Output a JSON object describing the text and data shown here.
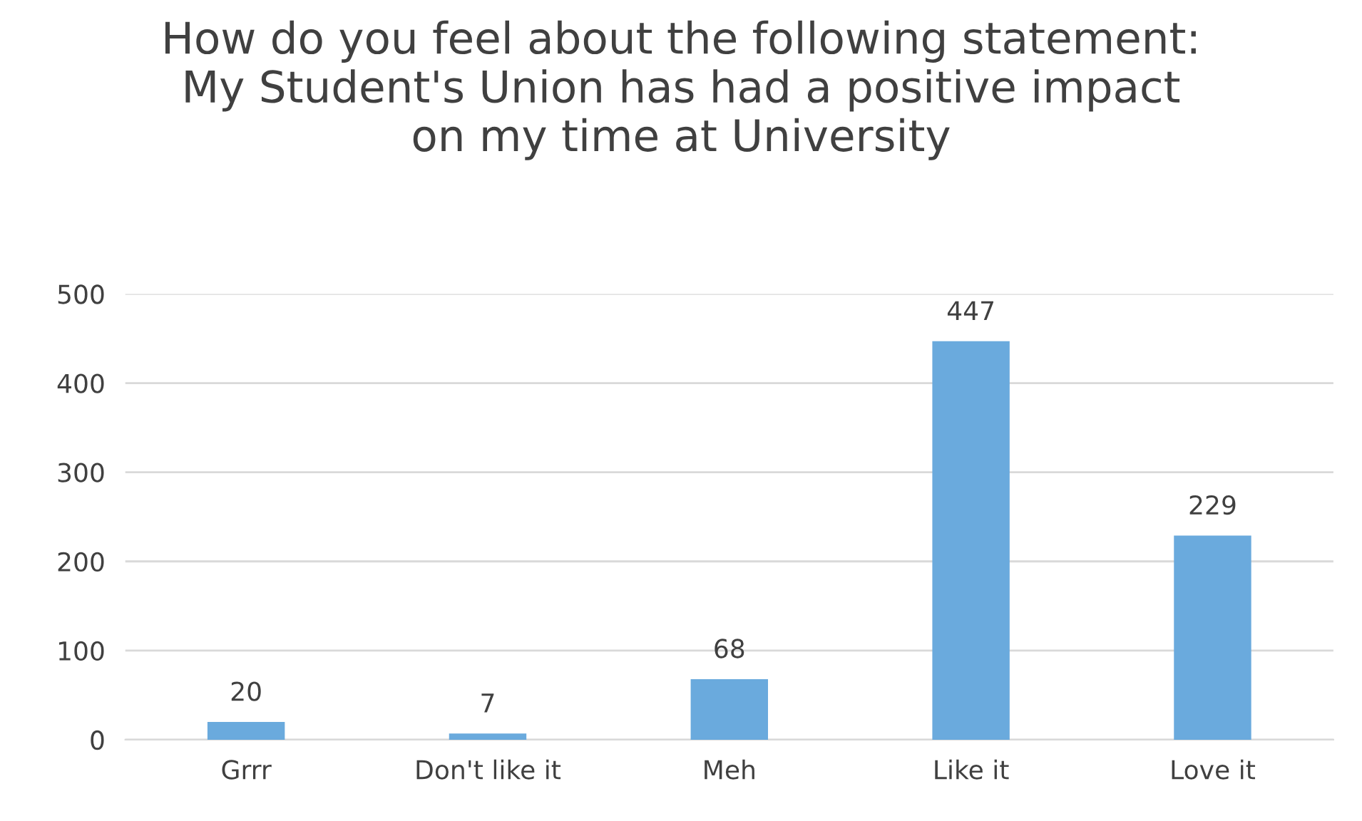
{
  "chart_data": {
    "type": "bar",
    "title": "How do you feel about the following statement:\nMy Student's Union has had a positive impact\non my time at University",
    "categories": [
      "Grrr",
      "Don't like it",
      "Meh",
      "Like it",
      "Love it"
    ],
    "values": [
      20,
      7,
      68,
      447,
      229
    ],
    "color": "#6aaadd",
    "ylim": [
      0,
      500
    ],
    "yticks": [
      0,
      100,
      200,
      300,
      400,
      500
    ],
    "grid": "y",
    "data_labels": true,
    "legend": false
  }
}
